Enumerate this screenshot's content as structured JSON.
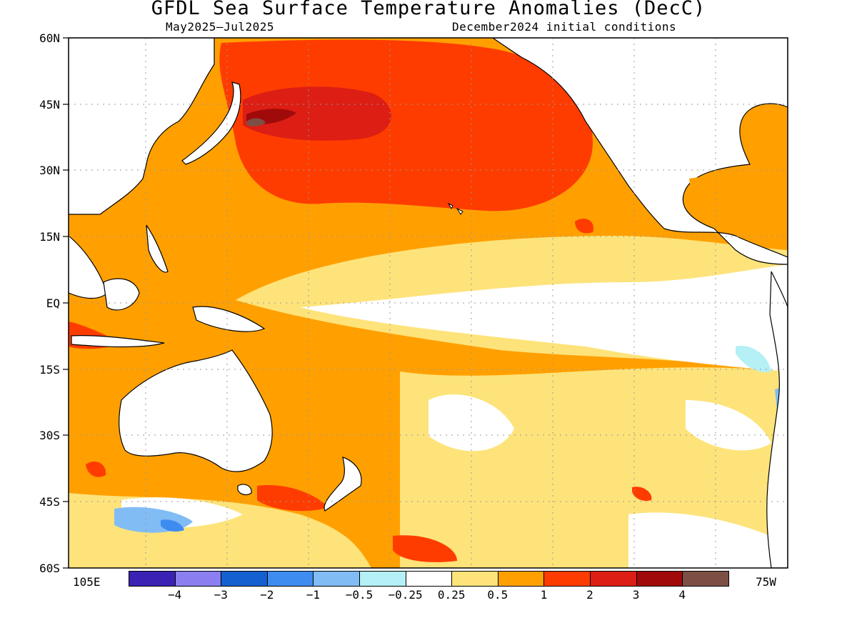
{
  "header": {
    "title": "GFDL Sea Surface Temperature Anomalies (DecC)",
    "period": "May2025–Jul2025",
    "init": "December2024 initial conditions"
  },
  "axes": {
    "lat_ticks": [
      "60N",
      "45N",
      "30N",
      "15N",
      "EQ",
      "15S",
      "30S",
      "45S",
      "60S"
    ],
    "lon_left": "105E",
    "lon_right": "75W"
  },
  "legend": {
    "colors": [
      "#3b22b4",
      "#8a7ef0",
      "#1560d0",
      "#3e8cf0",
      "#82bcf5",
      "#b4f0f5",
      "#ffffff",
      "#fde37a",
      "#ffa000",
      "#ff3c00",
      "#dc1e14",
      "#a00a0a",
      "#7d4f44"
    ],
    "labels": [
      "−4",
      "−3",
      "−2",
      "−1",
      "−0.5",
      "−0.25",
      "0.25",
      "0.5",
      "1",
      "2",
      "3",
      "4"
    ]
  }
}
